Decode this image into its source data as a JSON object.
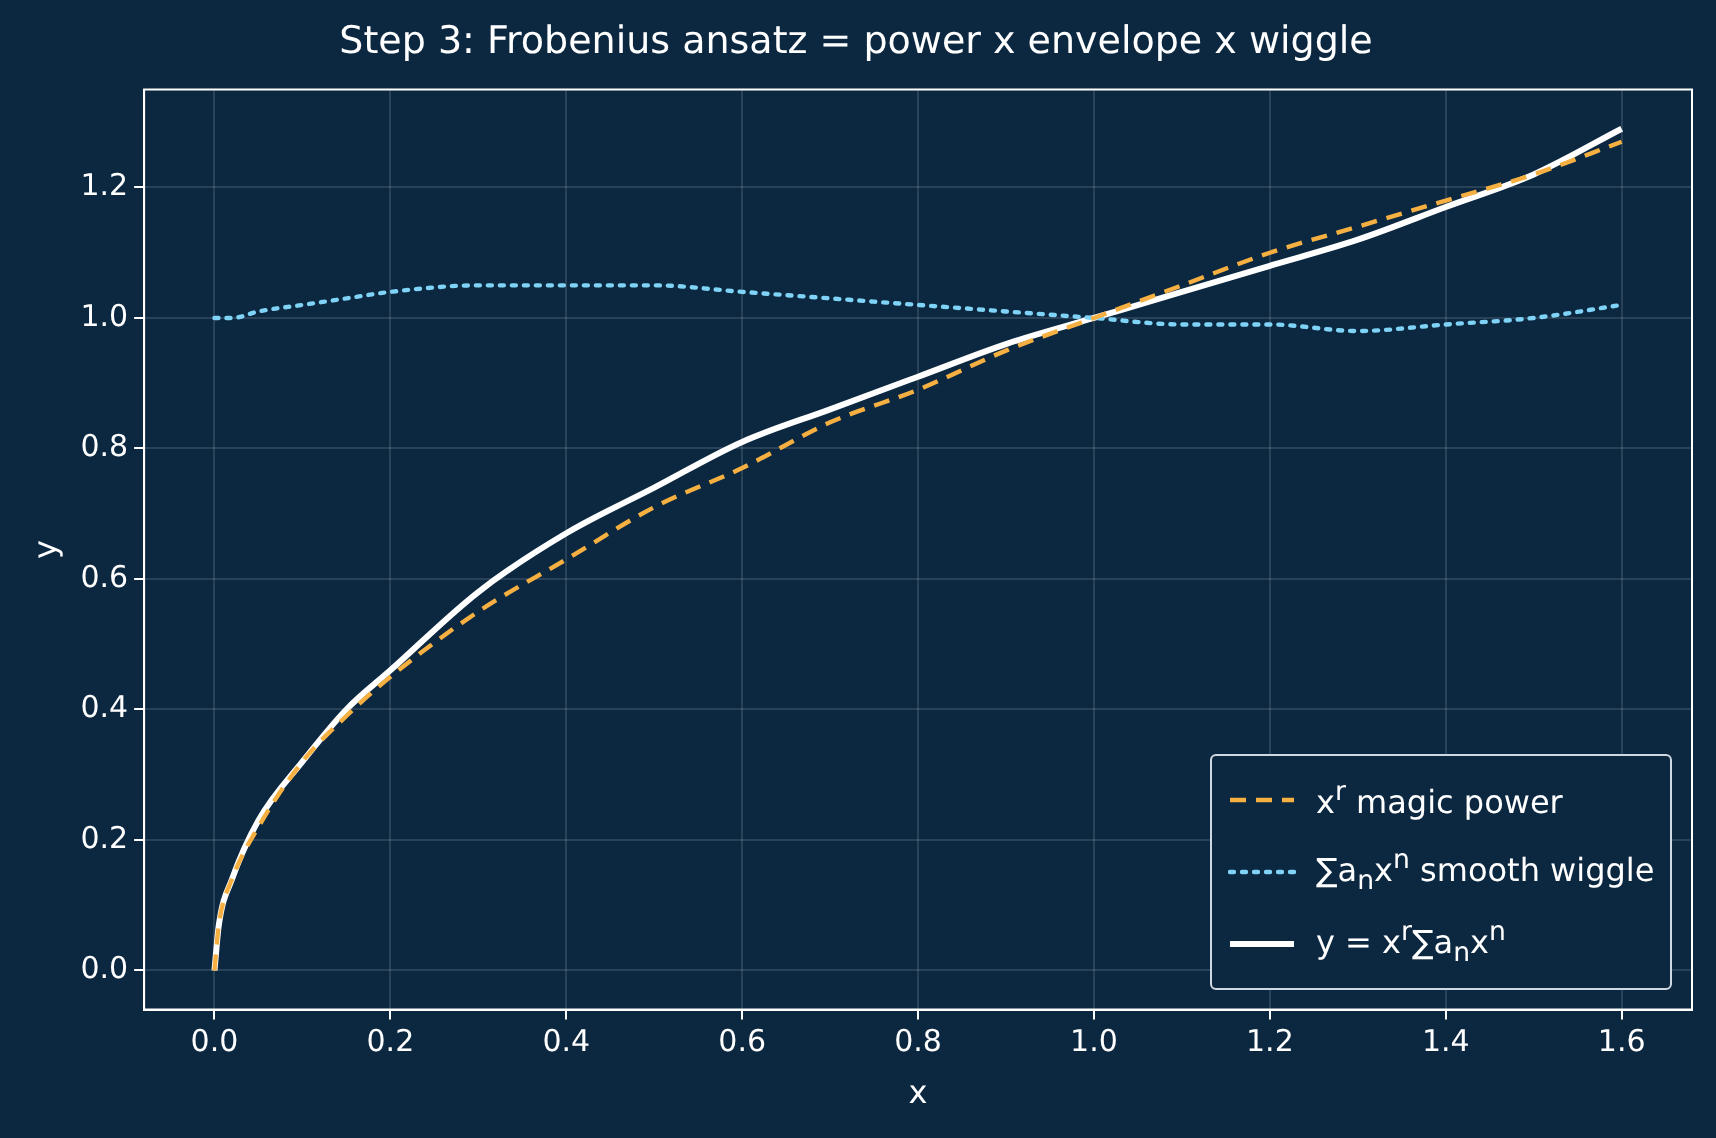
{
  "chart_data": {
    "type": "line",
    "title": "Step 3: Frobenius ansatz = power x envelope x wiggle",
    "xlabel": "x",
    "ylabel": "y",
    "x": [
      0,
      0.005,
      0.02,
      0.05,
      0.1,
      0.15,
      0.2,
      0.3,
      0.4,
      0.5,
      0.6,
      0.7,
      0.8,
      0.9,
      1.0,
      1.1,
      1.2,
      1.3,
      1.4,
      1.5,
      1.6
    ],
    "series": [
      {
        "name": "x$^{r}$ magic power",
        "color": "#f5b041",
        "line_style": "dashed",
        "values": [
          0,
          0.07,
          0.14,
          0.22,
          0.32,
          0.39,
          0.45,
          0.55,
          0.63,
          0.71,
          0.77,
          0.84,
          0.89,
          0.95,
          1.0,
          1.05,
          1.1,
          1.14,
          1.18,
          1.22,
          1.27
        ]
      },
      {
        "name": "∑a$_{n}$x$^{n}$ smooth wiggle",
        "color": "#7fd3f7",
        "line_style": "dotted",
        "values": [
          1.0,
          1.0,
          1.0,
          1.01,
          1.02,
          1.03,
          1.04,
          1.05,
          1.05,
          1.05,
          1.04,
          1.03,
          1.02,
          1.01,
          1.0,
          0.99,
          0.99,
          0.98,
          0.99,
          1.0,
          1.02
        ]
      },
      {
        "name": "y = x$^{r}$∑a$_{n}$x$^{n}$",
        "color": "#ffffff",
        "line_style": "solid",
        "values": [
          0,
          0.07,
          0.14,
          0.23,
          0.32,
          0.4,
          0.46,
          0.58,
          0.67,
          0.74,
          0.81,
          0.86,
          0.91,
          0.96,
          1.0,
          1.04,
          1.08,
          1.12,
          1.17,
          1.22,
          1.29
        ]
      }
    ],
    "xlim": [
      -0.08,
      1.68
    ],
    "ylim": [
      -0.06,
      1.35
    ],
    "xticks": [
      {
        "value": 0,
        "label": "0.0"
      },
      {
        "value": 0.2,
        "label": "0.2"
      },
      {
        "value": 0.4,
        "label": "0.4"
      },
      {
        "value": 0.6,
        "label": "0.6"
      },
      {
        "value": 0.8,
        "label": "0.8"
      },
      {
        "value": 1.0,
        "label": "1.0"
      },
      {
        "value": 1.2,
        "label": "1.2"
      },
      {
        "value": 1.4,
        "label": "1.4"
      },
      {
        "value": 1.6,
        "label": "1.6"
      }
    ],
    "yticks": [
      {
        "value": 0,
        "label": "0.0"
      },
      {
        "value": 0.2,
        "label": "0.2"
      },
      {
        "value": 0.4,
        "label": "0.4"
      },
      {
        "value": 0.6,
        "label": "0.6"
      },
      {
        "value": 0.8,
        "label": "0.8"
      },
      {
        "value": 1.0,
        "label": "1.0"
      },
      {
        "value": 1.2,
        "label": "1.2"
      }
    ],
    "grid": true,
    "legend": "bottom right",
    "marker": "none"
  }
}
